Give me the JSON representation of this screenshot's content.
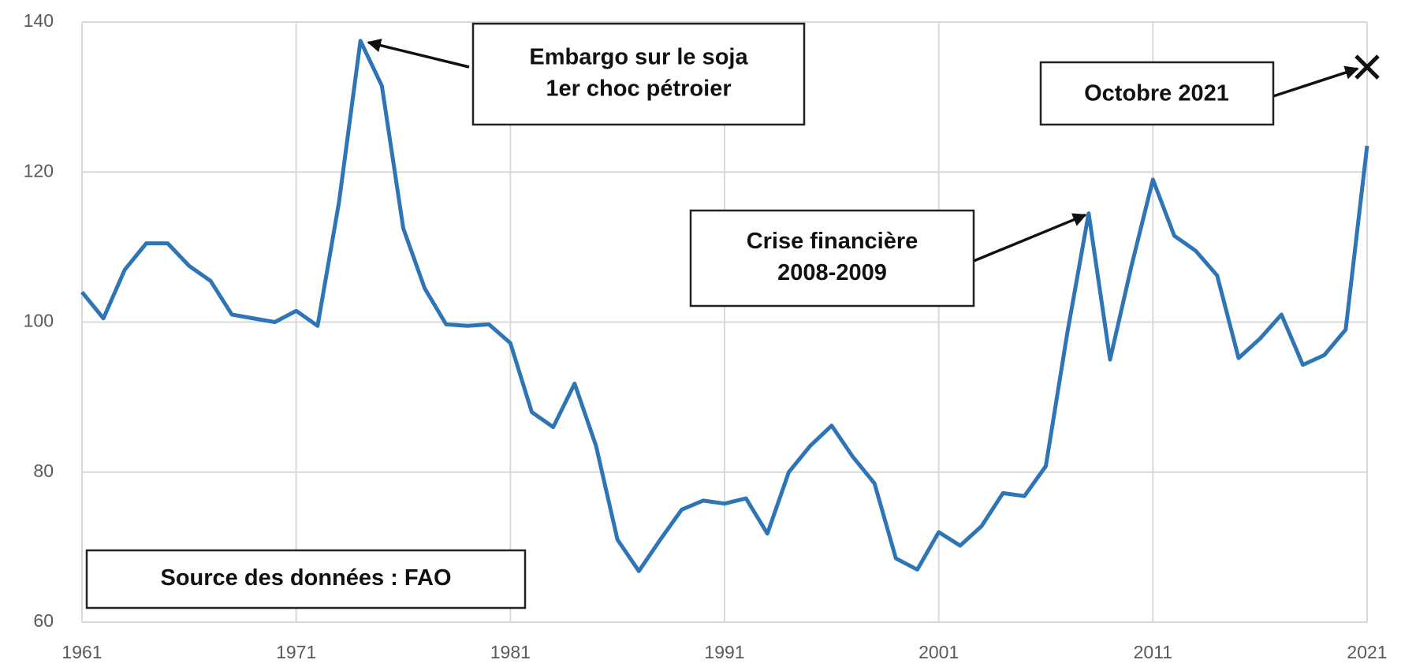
{
  "chart_data": {
    "type": "line",
    "x": [
      1961,
      1962,
      1963,
      1964,
      1965,
      1966,
      1967,
      1968,
      1969,
      1970,
      1971,
      1972,
      1973,
      1974,
      1975,
      1976,
      1977,
      1978,
      1979,
      1980,
      1981,
      1982,
      1983,
      1984,
      1985,
      1986,
      1987,
      1988,
      1989,
      1990,
      1991,
      1992,
      1993,
      1994,
      1995,
      1996,
      1997,
      1998,
      1999,
      2000,
      2001,
      2002,
      2003,
      2004,
      2005,
      2006,
      2007,
      2008,
      2009,
      2010,
      2011,
      2012,
      2013,
      2014,
      2015,
      2016,
      2017,
      2018,
      2019,
      2020,
      2021
    ],
    "series": [
      {
        "color": "#2e75b6",
        "values": [
          104,
          100.5,
          107,
          110.5,
          110.5,
          107.5,
          105.5,
          101,
          100.5,
          100,
          101.5,
          99.5,
          116,
          137.5,
          131.5,
          112.5,
          104.5,
          99.7,
          99.5,
          99.7,
          97.2,
          88,
          86,
          91.8,
          83.5,
          71,
          66.8,
          71,
          75,
          76.2,
          75.8,
          76.5,
          71.8,
          80,
          83.5,
          86.2,
          82,
          78.5,
          68.5,
          67,
          72,
          70.2,
          72.8,
          77.2,
          76.8,
          80.8,
          98.5,
          114.5,
          95,
          107.5,
          119,
          111.5,
          109.5,
          106.2,
          95.2,
          97.8,
          101,
          94.3,
          95.6,
          99,
          123.5
        ]
      }
    ],
    "xlim": [
      1961,
      2021
    ],
    "xticks": [
      1961,
      1971,
      1981,
      1991,
      2001,
      2011,
      2021
    ],
    "ylim": [
      60,
      140
    ],
    "yticks": [
      60,
      80,
      100,
      120,
      140
    ],
    "grid": true,
    "annotations": [
      {
        "lines": [
          "Embargo sur le soja",
          "1er choc pétroier"
        ]
      },
      {
        "lines": [
          "Crise financière",
          "2008-2009"
        ]
      },
      {
        "lines": [
          "Source des données : FAO"
        ]
      }
    ],
    "marker": {
      "label": "Octobre 2021",
      "x": 2021,
      "y": 134
    }
  }
}
